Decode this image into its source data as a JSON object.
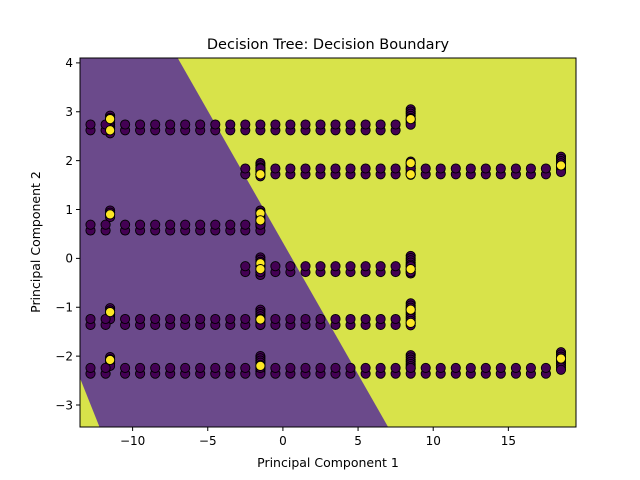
{
  "chart_data": {
    "type": "scatter",
    "title": "Decision Tree: Decision Boundary",
    "xlabel": "Principal Component 1",
    "ylabel": "Principal Component 2",
    "xlim": [
      -13.5,
      19.5
    ],
    "ylim": [
      -3.45,
      4.1
    ],
    "xticks": [
      -10,
      -5,
      0,
      5,
      10,
      15
    ],
    "yticks": [
      -3,
      -2,
      -1,
      0,
      1,
      2,
      3,
      4
    ],
    "xtick_labels": [
      "−10",
      "−5",
      "0",
      "5",
      "10",
      "15"
    ],
    "ytick_labels": [
      "−3",
      "−2",
      "−1",
      "0",
      "1",
      "2",
      "3",
      "4"
    ],
    "grid": false,
    "background_regions": [
      {
        "class": 0,
        "color": "#6b4a8b",
        "polygon": [
          [
            -13.5,
            4.1
          ],
          [
            -7.0,
            4.1
          ],
          [
            7.0,
            -3.45
          ],
          [
            -12.2,
            -3.45
          ],
          [
            -13.5,
            -2.45
          ]
        ]
      },
      {
        "class": 1,
        "color": "#d8e34a"
      }
    ],
    "class_colors": {
      "0": "#440154",
      "1": "#fde725"
    },
    "series": [
      {
        "class": 0,
        "rows": [
          {
            "y": 2.68,
            "x": [
              -12.8,
              -11.8,
              -10.5,
              -9.5,
              -8.5,
              -7.5,
              -6.5,
              -5.5,
              -4.5,
              -3.5,
              -2.5,
              -1.5,
              -0.5,
              0.5,
              1.5,
              2.5,
              3.5,
              4.5,
              5.5,
              6.5,
              7.5
            ]
          },
          {
            "y": 1.78,
            "x": [
              -2.5,
              -1.5,
              -0.5,
              0.5,
              1.5,
              2.5,
              3.5,
              4.5,
              5.5,
              6.5,
              7.5,
              8.5,
              9.5,
              10.5,
              11.5,
              12.5,
              13.5,
              14.5,
              15.5,
              16.5,
              17.5
            ]
          },
          {
            "y": 0.63,
            "x": [
              -12.8,
              -11.8,
              -10.5,
              -9.5,
              -8.5,
              -7.5,
              -6.5,
              -5.5,
              -4.5,
              -3.5,
              -2.5,
              -1.5
            ]
          },
          {
            "y": -0.22,
            "x": [
              -2.5,
              -1.5,
              -0.5,
              0.5,
              1.5,
              2.5,
              3.5,
              4.5,
              5.5,
              6.5,
              7.5,
              8.5
            ]
          },
          {
            "y": -1.3,
            "x": [
              -12.8,
              -11.8,
              -10.5,
              -9.5,
              -8.5,
              -7.5,
              -6.5,
              -5.5,
              -4.5,
              -3.5,
              -2.5,
              -1.5,
              -0.5,
              0.5,
              1.5,
              2.5,
              3.5,
              4.5,
              5.5,
              6.5,
              7.5
            ]
          },
          {
            "y": -2.3,
            "x": [
              -12.8,
              -11.8,
              -10.5,
              -9.5,
              -8.5,
              -7.5,
              -6.5,
              -5.5,
              -4.5,
              -3.5,
              -2.5,
              -1.5,
              -0.5,
              0.5,
              1.5,
              2.5,
              3.5,
              4.5,
              5.5,
              6.5,
              7.5,
              8.5,
              9.5,
              10.5,
              11.5,
              12.5,
              13.5,
              14.5,
              15.5,
              16.5,
              17.5
            ]
          }
        ]
      },
      {
        "class": 1,
        "points": [
          [
            -11.5,
            2.62
          ],
          [
            -11.5,
            2.85
          ],
          [
            -11.5,
            0.9
          ],
          [
            -11.5,
            -1.1
          ],
          [
            -11.5,
            -2.08
          ],
          [
            -1.5,
            1.72
          ],
          [
            -1.5,
            0.92
          ],
          [
            -1.5,
            0.78
          ],
          [
            -1.5,
            -0.1
          ],
          [
            -1.5,
            -0.22
          ],
          [
            -1.5,
            -1.25
          ],
          [
            -1.5,
            -2.2
          ],
          [
            8.5,
            2.85
          ],
          [
            8.5,
            1.95
          ],
          [
            8.5,
            1.72
          ],
          [
            8.5,
            -0.22
          ],
          [
            8.5,
            -1.05
          ],
          [
            8.5,
            -1.32
          ],
          [
            18.5,
            1.9
          ],
          [
            18.5,
            -2.05
          ]
        ]
      }
    ],
    "stacked_columns": [
      {
        "x": -11.5,
        "y_ranges": [
          [
            2.55,
            2.92
          ],
          [
            0.82,
            0.98
          ],
          [
            -1.28,
            -1.02
          ],
          [
            -2.22,
            -2.02
          ]
        ]
      },
      {
        "x": -1.5,
        "y_ranges": [
          [
            1.68,
            1.95
          ],
          [
            0.65,
            0.98
          ],
          [
            -0.35,
            0.02
          ],
          [
            -1.38,
            -1.05
          ],
          [
            -2.35,
            -2.0
          ]
        ]
      },
      {
        "x": 8.5,
        "y_ranges": [
          [
            2.72,
            3.05
          ],
          [
            1.7,
            1.98
          ],
          [
            -0.35,
            0.05
          ],
          [
            -1.38,
            -0.92
          ],
          [
            -2.28,
            -1.98
          ]
        ]
      },
      {
        "x": 18.5,
        "y_ranges": [
          [
            1.75,
            2.08
          ],
          [
            -2.32,
            -1.92
          ]
        ]
      }
    ]
  }
}
